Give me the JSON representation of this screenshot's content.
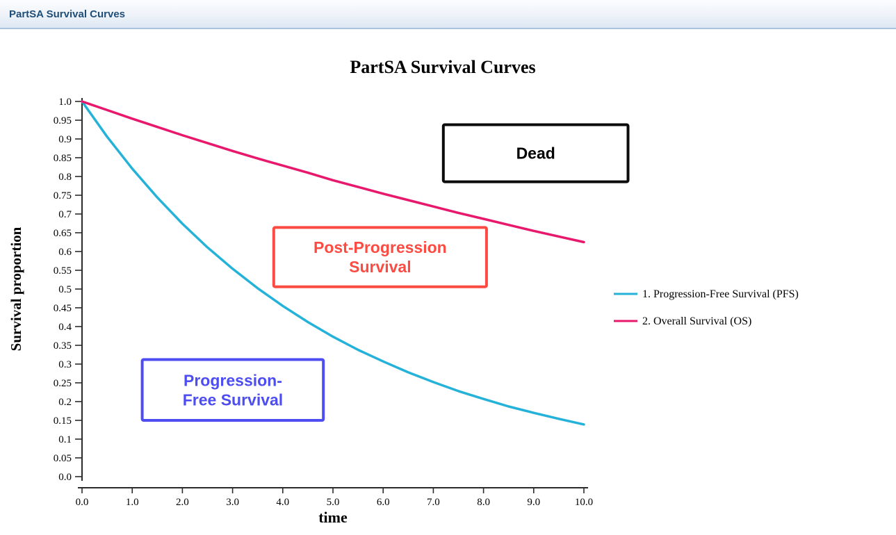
{
  "header": {
    "title": "PartSA Survival Curves"
  },
  "chart_data": {
    "type": "line",
    "title": "PartSA Survival Curves",
    "xlabel": "time",
    "ylabel": "Survival proportion",
    "xlim": [
      0,
      10
    ],
    "ylim": [
      0,
      1
    ],
    "grid": false,
    "legend_position": "right",
    "x_ticks": [
      "0.0",
      "1.0",
      "2.0",
      "3.0",
      "4.0",
      "5.0",
      "6.0",
      "7.0",
      "8.0",
      "9.0",
      "10.0"
    ],
    "y_ticks": [
      "1.0",
      "0.95",
      "0.9",
      "0.85",
      "0.8",
      "0.75",
      "0.7",
      "0.65",
      "0.6",
      "0.55",
      "0.5",
      "0.45",
      "0.4",
      "0.35",
      "0.3",
      "0.25",
      "0.2",
      "0.15",
      "0.1",
      "0.05",
      "0.0"
    ],
    "x": [
      0,
      0.5,
      1,
      1.5,
      2,
      2.5,
      3,
      3.5,
      4,
      4.5,
      5,
      5.5,
      6,
      6.5,
      7,
      7.5,
      8,
      8.5,
      9,
      9.5,
      10
    ],
    "series": [
      {
        "name": "1. Progression-Free Survival (PFS)",
        "color": "#25B2D9",
        "values": [
          1.0,
          0.906,
          0.821,
          0.744,
          0.674,
          0.611,
          0.554,
          0.502,
          0.455,
          0.412,
          0.373,
          0.338,
          0.307,
          0.278,
          0.252,
          0.228,
          0.207,
          0.187,
          0.17,
          0.154,
          0.139
        ]
      },
      {
        "name": "2. Overall Survival (OS)",
        "color": "#E8186D",
        "values": [
          1.0,
          0.977,
          0.954,
          0.932,
          0.91,
          0.889,
          0.868,
          0.848,
          0.829,
          0.81,
          0.79,
          0.772,
          0.754,
          0.737,
          0.72,
          0.703,
          0.687,
          0.671,
          0.655,
          0.64,
          0.625
        ]
      }
    ],
    "annotations": [
      {
        "id": "dead",
        "lines": [
          "Dead"
        ],
        "color": "#0B0B0B",
        "text_color": "#000000",
        "x0": 7.2,
        "x1": 10.88,
        "y0": 0.786,
        "y1": 0.938
      },
      {
        "id": "post-progression-survival",
        "lines": [
          "Post-Progression",
          "Survival"
        ],
        "color": "#FB4B42",
        "text_color": "#FB4B42",
        "x0": 3.82,
        "x1": 8.06,
        "y0": 0.506,
        "y1": 0.664
      },
      {
        "id": "progression-free-survival",
        "lines": [
          "Progression-",
          "Free Survival"
        ],
        "color": "#4D4DF2",
        "text_color": "#4D4DF2",
        "x0": 1.2,
        "x1": 4.81,
        "y0": 0.15,
        "y1": 0.312
      }
    ]
  }
}
